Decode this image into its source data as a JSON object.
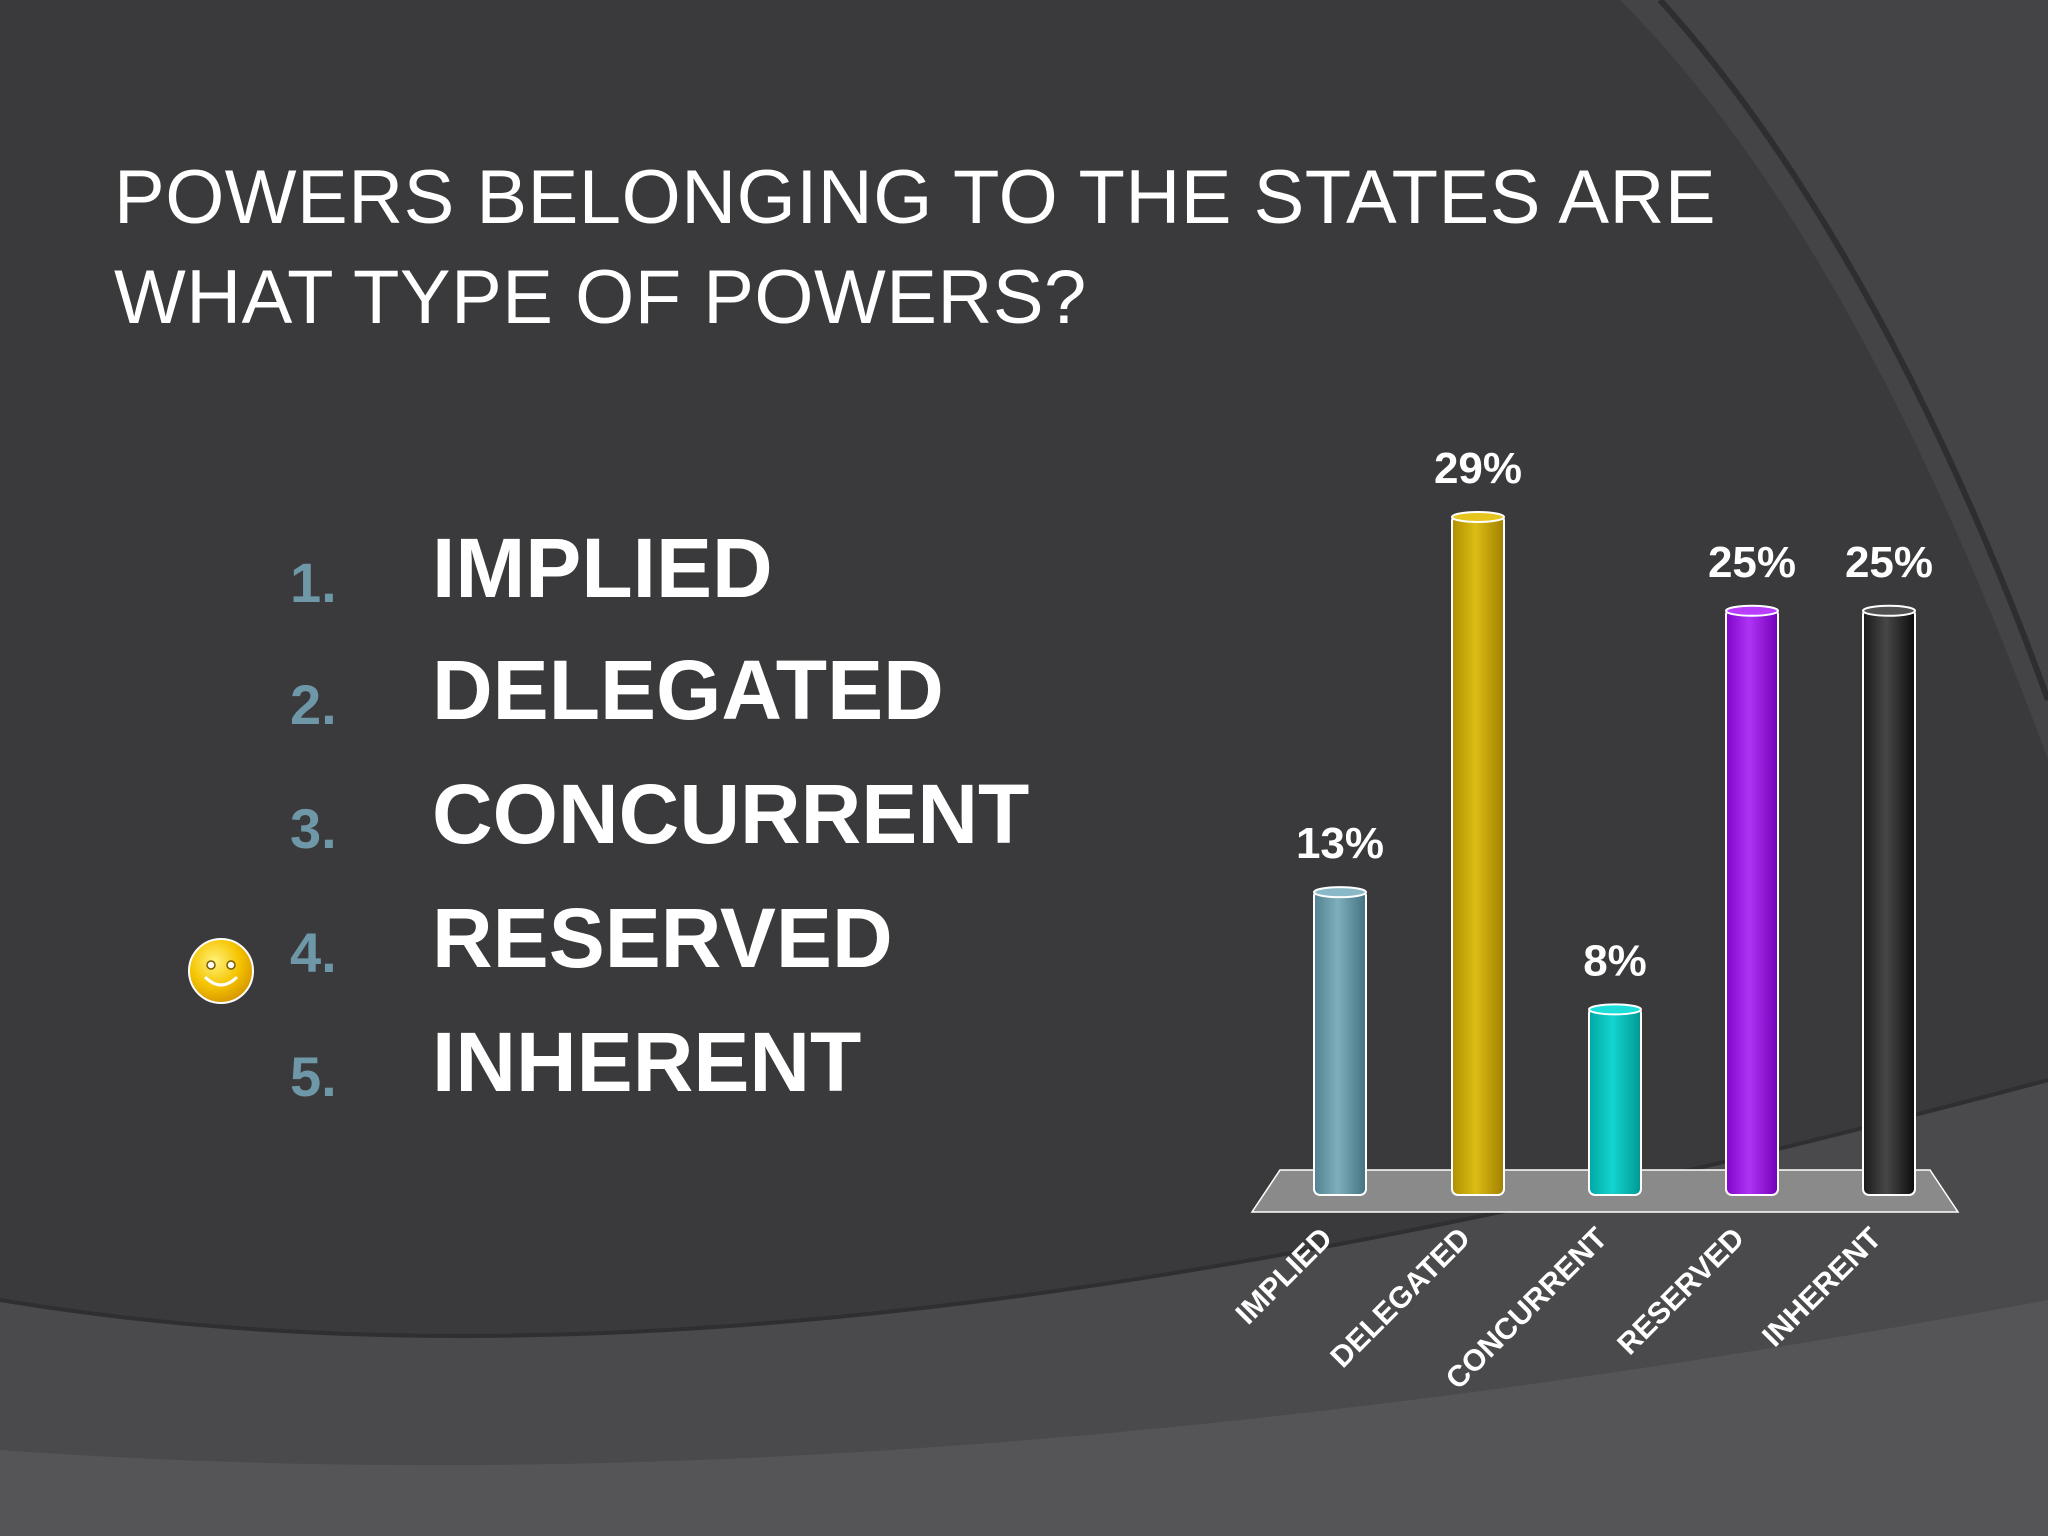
{
  "slide": {
    "title_line1": "POWERS BELONGING TO THE STATES ARE",
    "title_line2": "WHAT TYPE OF POWERS?",
    "options": [
      {
        "number": "1.",
        "label": "IMPLIED"
      },
      {
        "number": "2.",
        "label": "DELEGATED"
      },
      {
        "number": "3.",
        "label": "CONCURRENT"
      },
      {
        "number": "4.",
        "label": "RESERVED"
      },
      {
        "number": "5.",
        "label": "INHERENT"
      }
    ],
    "correct_marker_icon": "smiley-face-icon",
    "correct_option_index": 3
  },
  "chart_data": {
    "type": "bar",
    "categories": [
      "IMPLIED",
      "DELEGATED",
      "CONCURRENT",
      "RESERVED",
      "INHERENT"
    ],
    "values": [
      13,
      29,
      8,
      25,
      25
    ],
    "data_labels": [
      "13%",
      "29%",
      "8%",
      "25%",
      "25%"
    ],
    "colors": [
      "#6b9aa8",
      "#c8a800",
      "#00c0bc",
      "#9b1fe0",
      "#333333"
    ],
    "ylim": [
      0,
      29
    ],
    "title": "",
    "xlabel": "",
    "ylabel": "",
    "grid": false,
    "legend": "none"
  },
  "theme": {
    "background": "#3a3a3c",
    "number_color": "#6e98a8",
    "text_color": "#ffffff",
    "floor_color": "#8a8a8a"
  }
}
